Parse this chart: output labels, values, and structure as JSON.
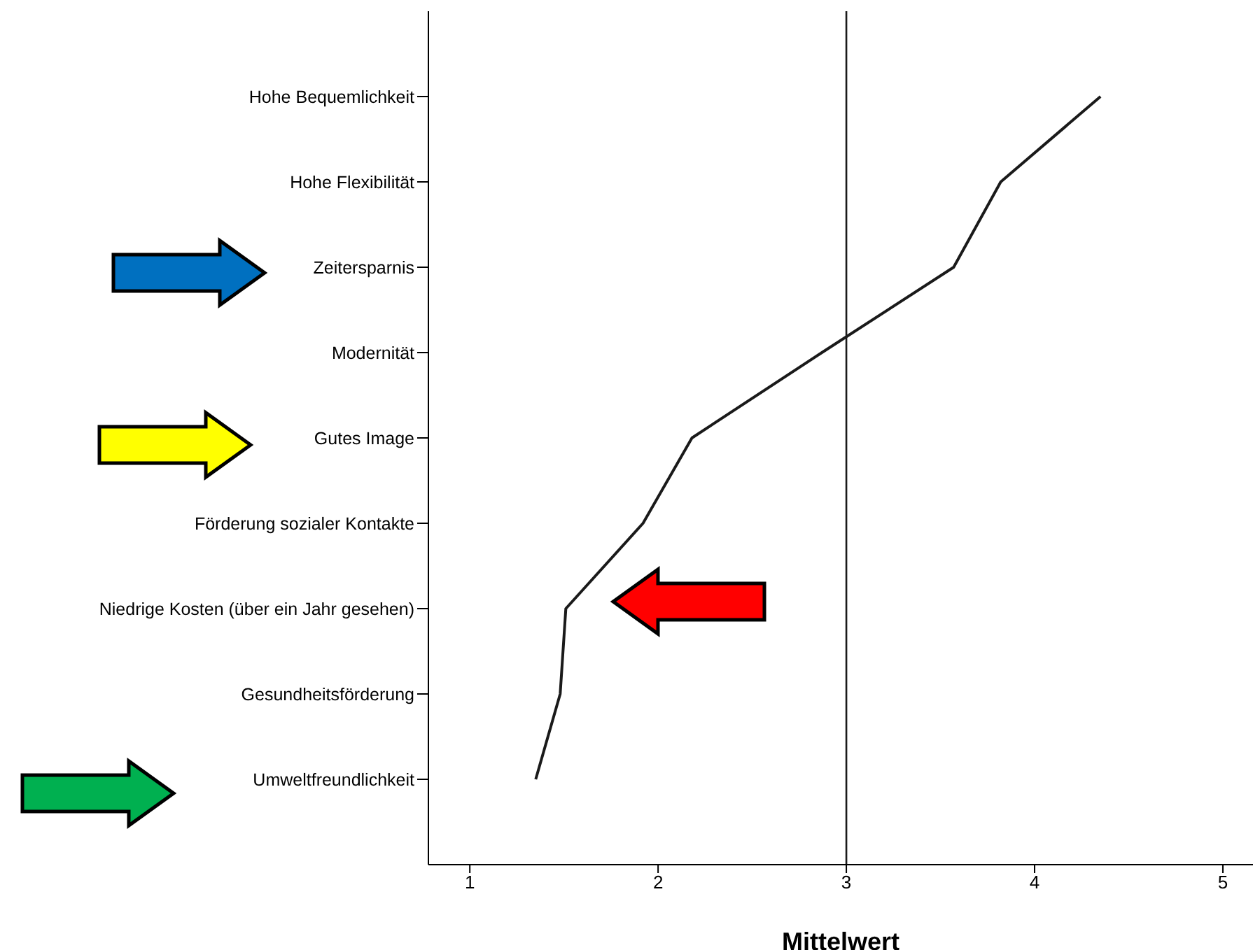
{
  "chart_data": {
    "type": "line",
    "orientation": "horizontal",
    "categories": [
      "Hohe Bequemlichkeit",
      "Hohe Flexibilität",
      "Zeitersparnis",
      "Modernität",
      "Gutes Image",
      "Förderung sozialer Kontakte",
      "Niedrige Kosten (über ein Jahr gesehen)",
      "Gesundheitsförderung",
      "Umweltfreundlichkeit"
    ],
    "values": [
      4.35,
      3.82,
      3.57,
      2.87,
      2.18,
      1.92,
      1.51,
      1.48,
      1.35
    ],
    "color": "#1a1a1a",
    "xlabel": "Mittelwert",
    "xlim": [
      0.78,
      5.16
    ],
    "xticks": [
      1,
      2,
      3,
      4,
      5
    ],
    "ref_lines": [
      {
        "axis": "x",
        "value": 3,
        "color": "#1a1a1a"
      }
    ],
    "grid": false,
    "marker": "none",
    "line_style": "solid"
  }
}
